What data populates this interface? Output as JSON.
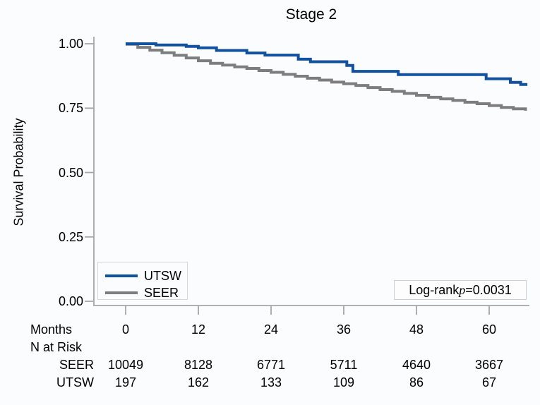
{
  "title": "Stage 2",
  "y_axis": {
    "label": "Survival Probability",
    "tick_labels": [
      "1.00",
      "0.75",
      "0.50",
      "0.25",
      "0.00"
    ]
  },
  "x_axis": {
    "label": "Months",
    "tick_labels": [
      "0",
      "12",
      "24",
      "36",
      "48",
      "60"
    ]
  },
  "legend": {
    "items": [
      {
        "label": "UTSW",
        "color": "#12519e"
      },
      {
        "label": "SEER",
        "color": "#7d7d7d"
      }
    ]
  },
  "annotation": {
    "prefix": "Log-rank",
    "p": "p",
    "suffix": "=0.0031"
  },
  "risk_table": {
    "header": "N at Risk",
    "rows": [
      {
        "label": "SEER",
        "values": [
          "10049",
          "8128",
          "6771",
          "5711",
          "4640",
          "3667"
        ]
      },
      {
        "label": "UTSW",
        "values": [
          "197",
          "162",
          "133",
          "109",
          "86",
          "67"
        ]
      }
    ]
  },
  "colors": {
    "utsw_blue": "#12519e",
    "seer_gray": "#7d7d7d",
    "axis_gray": "#a6a6a6"
  },
  "chart_data": {
    "type": "line",
    "subtype": "kaplan_meier_step",
    "title": "Stage 2",
    "xlabel": "Months",
    "ylabel": "Survival Probability",
    "xlim": [
      0,
      66.5
    ],
    "ylim": [
      0,
      1.0
    ],
    "x_ticks": [
      0,
      12,
      24,
      36,
      48,
      60
    ],
    "y_ticks": [
      1.0,
      0.75,
      0.5,
      0.25,
      0.0
    ],
    "grid": false,
    "legend_position": "bottom-left",
    "annotation": "Log-rank p=0.0031",
    "series": [
      {
        "name": "UTSW",
        "color": "#12519e",
        "step": true,
        "x_end": 66.3,
        "x": [
          0,
          5,
          10,
          12,
          15,
          20,
          23,
          28.5,
          30.5,
          36.5,
          37.5,
          45,
          59.5,
          63.5,
          65.2
        ],
        "y": [
          1.0,
          0.995,
          0.99,
          0.984,
          0.974,
          0.964,
          0.956,
          0.94,
          0.93,
          0.916,
          0.893,
          0.88,
          0.864,
          0.85,
          0.842
        ]
      },
      {
        "name": "SEER",
        "color": "#7d7d7d",
        "step": true,
        "x_end": 66.0,
        "x": [
          0,
          2,
          4,
          6,
          8,
          10,
          12,
          14,
          16,
          18,
          20,
          22,
          24,
          26,
          28,
          30,
          32,
          34,
          36,
          38,
          40,
          42,
          44,
          46,
          48,
          50,
          52,
          54,
          56,
          58,
          60,
          62,
          64,
          66
        ],
        "y": [
          0.998,
          0.986,
          0.975,
          0.965,
          0.955,
          0.945,
          0.934,
          0.924,
          0.917,
          0.91,
          0.904,
          0.896,
          0.889,
          0.881,
          0.874,
          0.866,
          0.859,
          0.851,
          0.845,
          0.838,
          0.83,
          0.822,
          0.815,
          0.807,
          0.8,
          0.792,
          0.786,
          0.78,
          0.773,
          0.767,
          0.76,
          0.753,
          0.747,
          0.74
        ]
      }
    ],
    "n_at_risk": {
      "months": [
        0,
        12,
        24,
        36,
        48,
        60
      ],
      "SEER": [
        10049,
        8128,
        6771,
        5711,
        4640,
        3667
      ],
      "UTSW": [
        197,
        162,
        133,
        109,
        86,
        67
      ]
    }
  }
}
